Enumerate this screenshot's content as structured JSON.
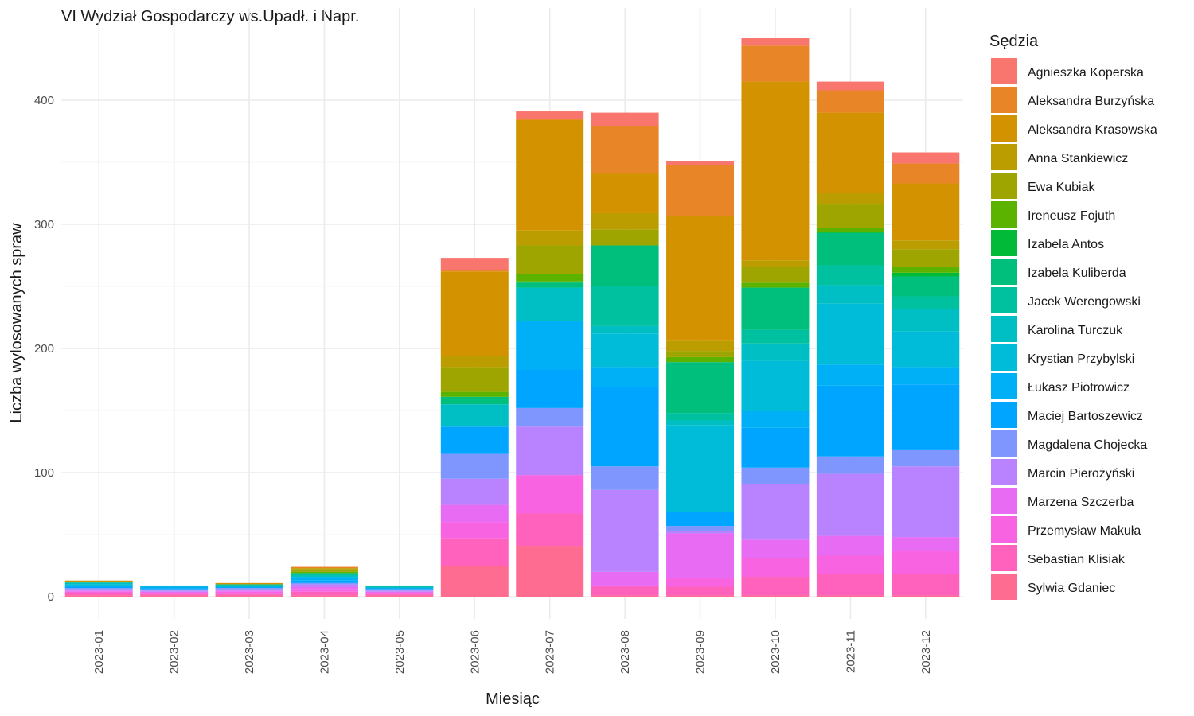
{
  "chart_data": {
    "type": "bar",
    "stacked": true,
    "title": "VI Wydział Gospodarczy ws.Upadł. i Napr.",
    "xlabel": "Miesiąc",
    "ylabel": "Liczba wylosowanych spraw",
    "ylim": [
      0,
      460
    ],
    "yticks": [
      0,
      100,
      200,
      300,
      400
    ],
    "legend_title": "Sędzia",
    "legend_position": "right",
    "grid": true,
    "categories": [
      "2023-01",
      "2023-02",
      "2023-03",
      "2023-04",
      "2023-05",
      "2023-06",
      "2023-07",
      "2023-08",
      "2023-09",
      "2023-10",
      "2023-11",
      "2023-12"
    ],
    "series": [
      {
        "name": "Sylwia Gdaniec",
        "color": "#FF6C91",
        "values": [
          1,
          1,
          1,
          1,
          1,
          25,
          41,
          1,
          1,
          1,
          1,
          1
        ]
      },
      {
        "name": "Sebastian Klisiak",
        "color": "#FF62BC",
        "values": [
          2,
          1,
          1,
          3,
          1,
          22,
          26,
          7,
          7,
          15,
          17,
          17
        ]
      },
      {
        "name": "Przemysław Makuła",
        "color": "#F763E0",
        "values": [
          1,
          1,
          2,
          2,
          1,
          13,
          31,
          1,
          7,
          15,
          15,
          19
        ]
      },
      {
        "name": "Marzena Szczerba",
        "color": "#E76BF3",
        "values": [
          1,
          1,
          1,
          2,
          1,
          14,
          0,
          11,
          36,
          15,
          16,
          11
        ]
      },
      {
        "name": "Marcin Pierożyński",
        "color": "#B983FF",
        "values": [
          1,
          1,
          1,
          2,
          1,
          21,
          39,
          66,
          2,
          45,
          50,
          57
        ]
      },
      {
        "name": "Magdalena Chojecka",
        "color": "#7F96FF",
        "values": [
          1,
          1,
          1,
          1,
          1,
          20,
          15,
          19,
          4,
          13,
          14,
          13
        ]
      },
      {
        "name": "Maciej Bartoszewicz",
        "color": "#00A5FF",
        "values": [
          1,
          1,
          1,
          2,
          1,
          22,
          31,
          64,
          11,
          32,
          57,
          53
        ]
      },
      {
        "name": "Łukasz Piotrowicz",
        "color": "#00B0F6",
        "values": [
          1,
          1,
          0,
          2,
          0,
          0,
          39,
          16,
          0,
          14,
          17,
          14
        ]
      },
      {
        "name": "Krystian Przybylski",
        "color": "#00BCD8",
        "values": [
          1,
          1,
          0,
          1,
          0,
          0,
          0,
          27,
          70,
          40,
          49,
          29
        ]
      },
      {
        "name": "Karolina Turczuk",
        "color": "#00BFC4",
        "values": [
          1,
          0,
          1,
          1,
          1,
          18,
          27,
          6,
          4,
          14,
          15,
          18
        ]
      },
      {
        "name": "Jacek Werengowski",
        "color": "#00C19F",
        "values": [
          1,
          0,
          1,
          1,
          1,
          0,
          0,
          32,
          6,
          11,
          16,
          10
        ]
      },
      {
        "name": "Izabela Kuliberda",
        "color": "#00BF7D",
        "values": [
          0,
          0,
          0,
          1,
          0,
          6,
          4,
          33,
          41,
          34,
          26,
          16
        ]
      },
      {
        "name": "Izabela Antos",
        "color": "#00BA38",
        "values": [
          0,
          0,
          0,
          0,
          0,
          0,
          1,
          0,
          0,
          0,
          1,
          3
        ]
      },
      {
        "name": "Ireneusz Fojuth",
        "color": "#5BB300",
        "values": [
          0,
          0,
          0,
          1,
          0,
          4,
          6,
          0,
          4,
          4,
          3,
          5
        ]
      },
      {
        "name": "Ewa Kubiak",
        "color": "#9FA500",
        "values": [
          0,
          0,
          0,
          2,
          0,
          20,
          23,
          13,
          5,
          13,
          19,
          14
        ]
      },
      {
        "name": "Anna Stankiewicz",
        "color": "#BB9D00",
        "values": [
          0,
          0,
          0,
          1,
          0,
          9,
          12,
          13,
          8,
          5,
          9,
          7
        ]
      },
      {
        "name": "Aleksandra Krasowska",
        "color": "#D39200",
        "values": [
          1,
          0,
          1,
          0,
          0,
          68,
          89,
          32,
          101,
          144,
          65,
          46
        ]
      },
      {
        "name": "Aleksandra Burzyńska",
        "color": "#E88526",
        "values": [
          0,
          0,
          0,
          1,
          0,
          1,
          1,
          38,
          41,
          29,
          18,
          16
        ]
      },
      {
        "name": "Agnieszka Koperska",
        "color": "#F8766D",
        "values": [
          0,
          0,
          0,
          0,
          0,
          10,
          6,
          11,
          3,
          6,
          7,
          9
        ]
      }
    ]
  }
}
